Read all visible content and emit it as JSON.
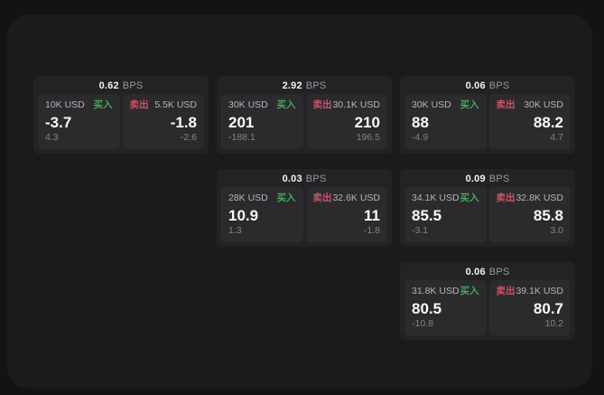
{
  "labels": {
    "bps": "BPS",
    "buy": "买入",
    "sell": "卖出"
  },
  "colors": {
    "page_bg": "#131315",
    "surface_bg": "#1b1b1d",
    "card_bg": "#232325",
    "panel_bg": "#2b2b2d",
    "text_primary": "#fafafa",
    "text_amount": "#b4b4ba",
    "text_muted": "#84848a",
    "buy_green": "#42a85c",
    "sell_red": "#cf5268"
  },
  "cards": [
    {
      "bps": "0.62",
      "buy": {
        "amount": "10K USD",
        "value": "-3.7",
        "sub": "4.3"
      },
      "sell": {
        "amount": "5.5K USD",
        "value": "-1.8",
        "sub": "-2.6"
      }
    },
    {
      "bps": "2.92",
      "buy": {
        "amount": "30K USD",
        "value": "201",
        "sub": "-188.1"
      },
      "sell": {
        "amount": "30.1K USD",
        "value": "210",
        "sub": "196.5"
      }
    },
    {
      "bps": "0.06",
      "buy": {
        "amount": "30K USD",
        "value": "88",
        "sub": "-4.9"
      },
      "sell": {
        "amount": "30K USD",
        "value": "88.2",
        "sub": "4.7"
      }
    },
    {
      "bps": "0.03",
      "buy": {
        "amount": "28K USD",
        "value": "10.9",
        "sub": "1.3"
      },
      "sell": {
        "amount": "32.6K USD",
        "value": "11",
        "sub": "-1.8"
      }
    },
    {
      "bps": "0.09",
      "buy": {
        "amount": "34.1K USD",
        "value": "85.5",
        "sub": "-3.1"
      },
      "sell": {
        "amount": "32.8K USD",
        "value": "85.8",
        "sub": "3.0"
      }
    },
    {
      "bps": "0.06",
      "buy": {
        "amount": "31.8K USD",
        "value": "80.5",
        "sub": "-10.8"
      },
      "sell": {
        "amount": "39.1K USD",
        "value": "80.7",
        "sub": "10.2"
      }
    }
  ]
}
